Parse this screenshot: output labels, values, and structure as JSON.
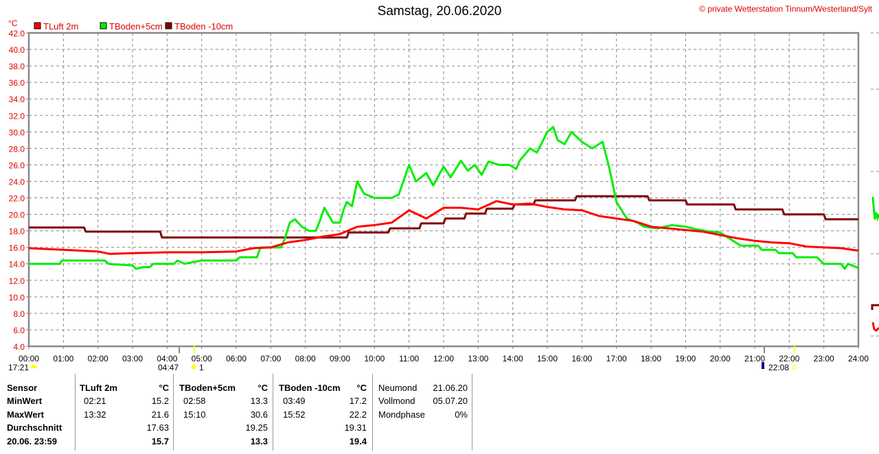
{
  "title": "Samstag, 20.06.2020",
  "copyright": "© private Wetterstation Tinnum/Westerland/Sylt",
  "chart_data": {
    "type": "line",
    "title": "Samstag, 20.06.2020",
    "ylabel": "°C",
    "ylim": [
      4,
      42
    ],
    "xlim": [
      0,
      24
    ],
    "grid": true,
    "legend_placement": "top-left",
    "yticks": [
      "4.0",
      "6.0",
      "8.0",
      "10.0",
      "12.0",
      "14.0",
      "16.0",
      "18.0",
      "20.0",
      "22.0",
      "24.0",
      "26.0",
      "28.0",
      "30.0",
      "32.0",
      "34.0",
      "36.0",
      "38.0",
      "40.0",
      "42.0"
    ],
    "xticks": [
      "00:00",
      "01:00",
      "02:00",
      "03:00",
      "04:00",
      "05:00",
      "06:00",
      "07:00",
      "08:00",
      "09:00",
      "10:00",
      "11:00",
      "12:00",
      "13:00",
      "14:00",
      "15:00",
      "16:00",
      "17:00",
      "18:00",
      "19:00",
      "20:00",
      "21:00",
      "22:00",
      "23:00",
      "24:00"
    ],
    "series": [
      {
        "name": "TLuft 2m",
        "color": "#ff0000",
        "points": [
          [
            0,
            15.9
          ],
          [
            1,
            15.7
          ],
          [
            2,
            15.5
          ],
          [
            2.35,
            15.2
          ],
          [
            3,
            15.3
          ],
          [
            4,
            15.4
          ],
          [
            5,
            15.4
          ],
          [
            6,
            15.5
          ],
          [
            6.5,
            15.9
          ],
          [
            7,
            16.0
          ],
          [
            7.5,
            16.6
          ],
          [
            8,
            16.9
          ],
          [
            8.5,
            17.3
          ],
          [
            9,
            17.6
          ],
          [
            9.5,
            18.5
          ],
          [
            10,
            18.7
          ],
          [
            10.5,
            19.0
          ],
          [
            11,
            20.5
          ],
          [
            11.5,
            19.5
          ],
          [
            12,
            20.8
          ],
          [
            12.5,
            20.8
          ],
          [
            13,
            20.6
          ],
          [
            13.53,
            21.6
          ],
          [
            14,
            21.2
          ],
          [
            14.5,
            21.3
          ],
          [
            15,
            20.9
          ],
          [
            15.5,
            20.6
          ],
          [
            16,
            20.5
          ],
          [
            16.5,
            19.8
          ],
          [
            17,
            19.5
          ],
          [
            17.5,
            19.2
          ],
          [
            18,
            18.5
          ],
          [
            18.5,
            18.3
          ],
          [
            19,
            18.1
          ],
          [
            19.5,
            17.9
          ],
          [
            20,
            17.5
          ],
          [
            20.5,
            17.1
          ],
          [
            21,
            16.8
          ],
          [
            21.5,
            16.6
          ],
          [
            22,
            16.5
          ],
          [
            22.5,
            16.1
          ],
          [
            23,
            16.0
          ],
          [
            23.5,
            15.9
          ],
          [
            24,
            15.6
          ]
        ]
      },
      {
        "name": "TBoden+5cm",
        "color": "#00ee00",
        "points": [
          [
            0,
            14.0
          ],
          [
            0.9,
            14.0
          ],
          [
            0.95,
            14.4
          ],
          [
            2.2,
            14.4
          ],
          [
            2.3,
            14.0
          ],
          [
            3.0,
            13.8
          ],
          [
            3.1,
            13.4
          ],
          [
            3.3,
            13.6
          ],
          [
            3.5,
            13.6
          ],
          [
            3.6,
            14.0
          ],
          [
            4.2,
            14.0
          ],
          [
            4.3,
            14.4
          ],
          [
            4.5,
            14.0
          ],
          [
            5.0,
            14.4
          ],
          [
            6.0,
            14.4
          ],
          [
            6.1,
            14.8
          ],
          [
            6.6,
            14.8
          ],
          [
            6.7,
            16.0
          ],
          [
            7.3,
            16.0
          ],
          [
            7.4,
            17.0
          ],
          [
            7.55,
            19.0
          ],
          [
            7.7,
            19.4
          ],
          [
            7.9,
            18.5
          ],
          [
            8.1,
            18.0
          ],
          [
            8.3,
            18.0
          ],
          [
            8.4,
            19.0
          ],
          [
            8.55,
            20.8
          ],
          [
            8.8,
            19.0
          ],
          [
            9.0,
            19.0
          ],
          [
            9.1,
            20.5
          ],
          [
            9.2,
            21.5
          ],
          [
            9.35,
            21.0
          ],
          [
            9.5,
            24.0
          ],
          [
            9.7,
            22.5
          ],
          [
            10.0,
            22.0
          ],
          [
            10.5,
            22.0
          ],
          [
            10.7,
            22.4
          ],
          [
            11.0,
            26.0
          ],
          [
            11.2,
            24.0
          ],
          [
            11.5,
            25.0
          ],
          [
            11.7,
            23.5
          ],
          [
            12.0,
            25.8
          ],
          [
            12.2,
            24.5
          ],
          [
            12.5,
            26.5
          ],
          [
            12.7,
            25.3
          ],
          [
            12.9,
            26.0
          ],
          [
            13.1,
            24.8
          ],
          [
            13.3,
            26.4
          ],
          [
            13.6,
            26.0
          ],
          [
            13.9,
            26.0
          ],
          [
            14.1,
            25.5
          ],
          [
            14.2,
            26.5
          ],
          [
            14.5,
            28.0
          ],
          [
            14.7,
            27.5
          ],
          [
            15.0,
            30.0
          ],
          [
            15.17,
            30.6
          ],
          [
            15.3,
            29.0
          ],
          [
            15.5,
            28.5
          ],
          [
            15.7,
            30.0
          ],
          [
            16.0,
            28.8
          ],
          [
            16.3,
            28.0
          ],
          [
            16.6,
            28.8
          ],
          [
            16.8,
            25.5
          ],
          [
            17.0,
            21.5
          ],
          [
            17.3,
            19.5
          ],
          [
            17.6,
            19.0
          ],
          [
            17.8,
            18.5
          ],
          [
            18.2,
            18.3
          ],
          [
            18.6,
            18.7
          ],
          [
            19.0,
            18.5
          ],
          [
            19.3,
            18.2
          ],
          [
            19.7,
            17.9
          ],
          [
            20.0,
            17.8
          ],
          [
            20.3,
            17.0
          ],
          [
            20.6,
            16.2
          ],
          [
            21.1,
            16.2
          ],
          [
            21.2,
            15.7
          ],
          [
            21.6,
            15.7
          ],
          [
            21.7,
            15.3
          ],
          [
            22.1,
            15.3
          ],
          [
            22.2,
            14.8
          ],
          [
            22.8,
            14.8
          ],
          [
            23.0,
            14.0
          ],
          [
            23.5,
            14.0
          ],
          [
            23.6,
            13.4
          ],
          [
            23.7,
            14.0
          ],
          [
            24,
            13.5
          ]
        ]
      },
      {
        "name": "TBoden -10cm",
        "color": "#800000",
        "points": [
          [
            0,
            18.4
          ],
          [
            1.6,
            18.4
          ],
          [
            1.65,
            17.9
          ],
          [
            3.8,
            17.9
          ],
          [
            3.85,
            17.2
          ],
          [
            9.2,
            17.2
          ],
          [
            9.25,
            17.8
          ],
          [
            10.4,
            17.8
          ],
          [
            10.45,
            18.3
          ],
          [
            11.3,
            18.3
          ],
          [
            11.35,
            18.9
          ],
          [
            12.0,
            18.9
          ],
          [
            12.05,
            19.5
          ],
          [
            12.6,
            19.5
          ],
          [
            12.65,
            20.1
          ],
          [
            13.2,
            20.1
          ],
          [
            13.25,
            20.7
          ],
          [
            14.0,
            20.7
          ],
          [
            14.05,
            21.2
          ],
          [
            14.6,
            21.2
          ],
          [
            14.65,
            21.7
          ],
          [
            15.8,
            21.7
          ],
          [
            15.85,
            22.2
          ],
          [
            17.9,
            22.2
          ],
          [
            17.95,
            21.7
          ],
          [
            19.0,
            21.7
          ],
          [
            19.05,
            21.2
          ],
          [
            20.4,
            21.2
          ],
          [
            20.45,
            20.6
          ],
          [
            21.8,
            20.6
          ],
          [
            21.85,
            20.0
          ],
          [
            23.0,
            20.0
          ],
          [
            23.05,
            19.4
          ],
          [
            24,
            19.4
          ]
        ]
      }
    ],
    "annotations": {
      "sunset_prev": "17:21",
      "sunrise": "04:47",
      "sun_label": "1",
      "moon_time": "22:08"
    }
  },
  "table": {
    "col0": [
      "Sensor",
      "MinWert",
      "MaxWert",
      "Durchschnitt",
      "20.06. 23:59"
    ],
    "sensors": [
      {
        "name": "TLuft 2m",
        "unit": "°C",
        "min_time": "02:21",
        "min": "15.2",
        "max_time": "13:32",
        "max": "21.6",
        "avg": "17.63",
        "last": "15.7"
      },
      {
        "name": "TBoden+5cm",
        "unit": "°C",
        "min_time": "02:58",
        "min": "13.3",
        "max_time": "15:10",
        "max": "30.6",
        "avg": "19.25",
        "last": "13.3"
      },
      {
        "name": "TBoden -10cm",
        "unit": "°C",
        "min_time": "03:49",
        "min": "17.2",
        "max_time": "15:52",
        "max": "22.2",
        "avg": "19.31",
        "last": "19.4"
      }
    ],
    "moon": [
      {
        "label": "Neumond",
        "value": "21.06.20"
      },
      {
        "label": "Vollmond",
        "value": "05.07.20"
      },
      {
        "label": "Mondphase",
        "value": "0%"
      }
    ]
  }
}
